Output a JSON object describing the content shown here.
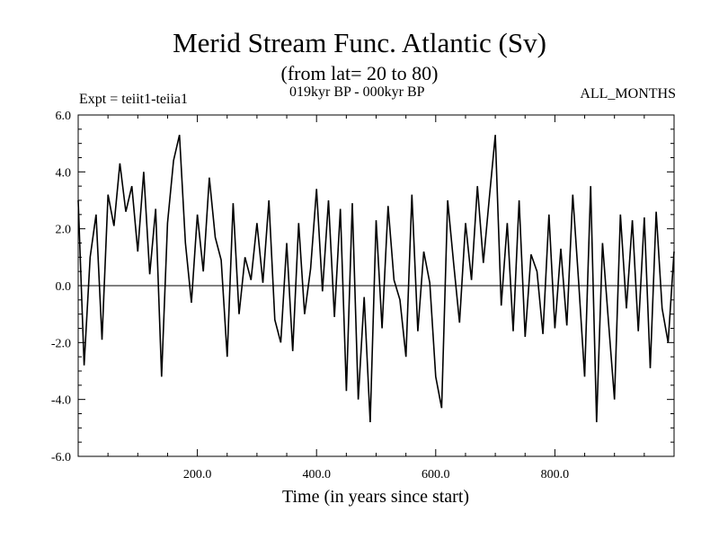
{
  "header": {
    "title": "Merid Stream Func. Atlantic (Sv)",
    "subtitle": "(from lat= 20 to 80)",
    "period": "019kyr BP - 000kyr BP",
    "experiment": "Expt = teiit1-teiia1",
    "months": "ALL_MONTHS"
  },
  "chart_data": {
    "type": "line",
    "title": "Merid Stream Func. Atlantic (Sv)",
    "xlabel": "Time (in years since start)",
    "ylabel": "",
    "xlim": [
      0,
      1000
    ],
    "ylim": [
      -6,
      6
    ],
    "xticks": [
      200,
      400,
      600,
      800
    ],
    "xtick_labels": [
      "200.0",
      "400.0",
      "600.0",
      "800.0"
    ],
    "yticks": [
      -6,
      -4,
      -2,
      0,
      2,
      4,
      6
    ],
    "ytick_labels": [
      "-6.0",
      "-4.0",
      "-2.0",
      "0.0",
      "2.0",
      "4.0",
      "6.0"
    ],
    "zero_line": true,
    "grid": false,
    "line_color": "#000000",
    "series": [
      {
        "x": [
          0,
          10,
          20,
          30,
          40,
          50,
          60,
          70,
          80,
          90,
          100,
          110,
          120,
          130,
          140,
          150,
          160,
          170,
          180,
          190,
          200,
          210,
          220,
          230,
          240,
          250,
          260,
          270,
          280,
          290,
          300,
          310,
          320,
          330,
          340,
          350,
          360,
          370,
          380,
          390,
          400,
          410,
          420,
          430,
          440,
          450,
          460,
          470,
          480,
          490,
          500,
          510,
          520,
          530,
          540,
          550,
          560,
          570,
          580,
          590,
          600,
          610,
          620,
          630,
          640,
          650,
          660,
          670,
          680,
          690,
          700,
          710,
          720,
          730,
          740,
          750,
          760,
          770,
          780,
          790,
          800,
          810,
          820,
          830,
          840,
          850,
          860,
          870,
          880,
          890,
          900,
          910,
          920,
          930,
          940,
          950,
          960,
          970,
          980,
          990,
          1000
        ],
        "values": [
          3.0,
          -2.8,
          1.0,
          2.5,
          -1.9,
          3.2,
          2.1,
          4.3,
          2.6,
          3.5,
          1.2,
          4.0,
          0.4,
          2.7,
          -3.2,
          2.2,
          4.4,
          5.3,
          1.5,
          -0.6,
          2.5,
          0.5,
          3.8,
          1.7,
          0.9,
          -2.5,
          2.9,
          -1.0,
          1.0,
          0.2,
          2.2,
          0.1,
          3.0,
          -1.2,
          -2.0,
          1.5,
          -2.3,
          2.2,
          -1.0,
          0.6,
          3.4,
          -0.2,
          3.0,
          -1.1,
          2.7,
          -3.7,
          2.9,
          -4.0,
          -0.4,
          -4.8,
          2.3,
          -1.5,
          2.8,
          0.2,
          -0.5,
          -2.5,
          3.2,
          -1.6,
          1.2,
          0.1,
          -3.2,
          -4.3,
          3.0,
          0.8,
          -1.3,
          2.2,
          0.2,
          3.5,
          0.8,
          3.1,
          5.3,
          -0.7,
          2.2,
          -1.6,
          3.0,
          -1.8,
          1.1,
          0.5,
          -1.7,
          2.5,
          -1.5,
          1.3,
          -1.4,
          3.2,
          0.1,
          -3.2,
          3.5,
          -4.8,
          1.5,
          -1.3,
          -4.0,
          2.5,
          -0.8,
          2.3,
          -1.6,
          2.4,
          -2.9,
          2.6,
          -0.8,
          -2.0,
          1.2
        ]
      }
    ]
  }
}
